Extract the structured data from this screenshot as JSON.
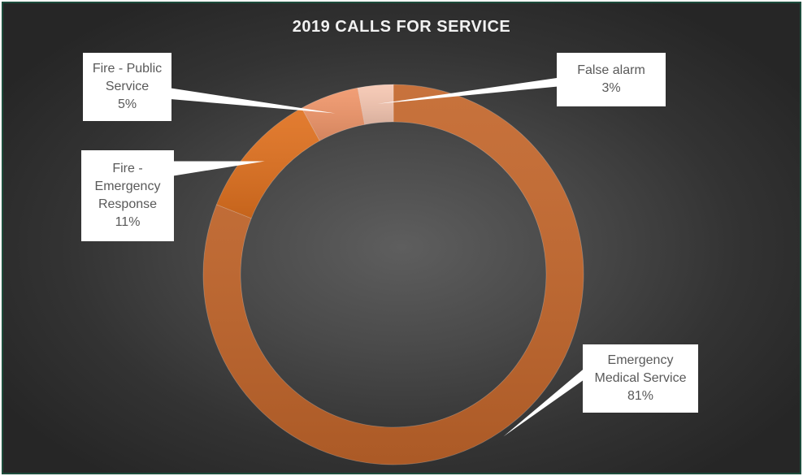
{
  "chart_data": {
    "type": "pie",
    "variant": "doughnut",
    "title": "2019 CALLS FOR SERVICE",
    "series": [
      {
        "values": [
          81,
          11,
          5,
          3
        ],
        "categories": [
          "Emergency Medical Service",
          "Fire - Emergency Response",
          "Fire - Public Service",
          "False alarm"
        ]
      }
    ],
    "slice_colors": [
      "#c3662b",
      "#e0711f",
      "#f0966a",
      "#f6c7b2"
    ],
    "labels": [
      {
        "lines": [
          "Emergency",
          "Medical Service",
          "81%"
        ]
      },
      {
        "lines": [
          "Fire -",
          "Emergency",
          "Response",
          "11%"
        ]
      },
      {
        "lines": [
          "Fire - Public",
          "Service",
          "5%"
        ]
      },
      {
        "lines": [
          "False alarm",
          "3%"
        ]
      }
    ],
    "legend": "none",
    "grid": false
  }
}
